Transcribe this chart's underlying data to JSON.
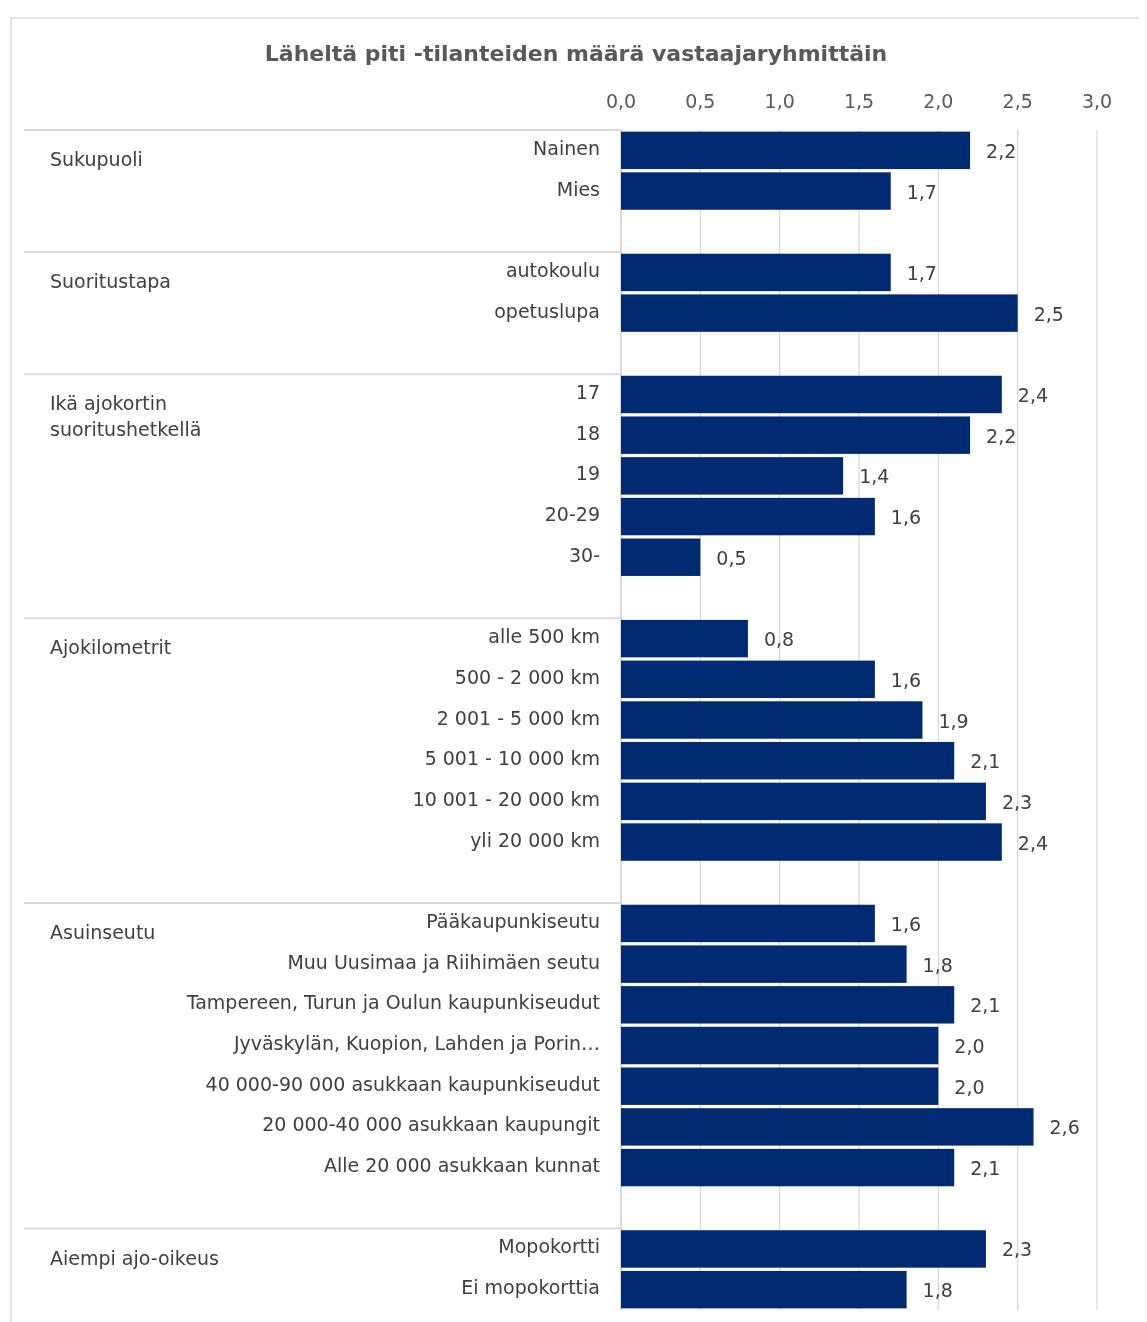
{
  "chart_data": {
    "type": "bar",
    "orientation": "horizontal",
    "title": "Läheltä piti -tilanteiden määrä vastaajaryhmittäin",
    "categories": [
      "Nainen",
      "Mies",
      null,
      "autokoulu",
      "opetuslupa",
      null,
      "17",
      "18",
      "19",
      "20-29",
      "30-",
      null,
      "alle 500 km",
      "500 - 2 000 km",
      "2 001 - 5 000 km",
      "5 001 - 10 000 km",
      "10 001 - 20 000 km",
      "yli 20 000 km",
      null,
      "Pääkaupunkiseutu",
      "Muu Uusimaa ja Riihimäen seutu",
      "Tampereen, Turun ja Oulun kaupunkiseudut",
      "Jyväskylän, Kuopion, Lahden ja Porin…",
      "40 000-90 000 asukkaan kaupunkiseudut",
      "20 000-40 000 asukkaan kaupungit",
      "Alle 20 000 asukkaan kunnat",
      null,
      "Mopokortti",
      "Ei mopokorttia"
    ],
    "values": [
      2.2,
      1.7,
      null,
      1.7,
      2.5,
      null,
      2.4,
      2.2,
      1.4,
      1.6,
      0.5,
      null,
      0.8,
      1.6,
      1.9,
      2.1,
      2.3,
      2.4,
      null,
      1.6,
      1.8,
      2.1,
      2.0,
      2.0,
      2.6,
      2.1,
      null,
      2.3,
      1.8
    ],
    "value_labels": [
      "2,2",
      "1,7",
      null,
      "1,7",
      "2,5",
      null,
      "2,4",
      "2,2",
      "1,4",
      "1,6",
      "0,5",
      null,
      "0,8",
      "1,6",
      "1,9",
      "2,1",
      "2,3",
      "2,4",
      null,
      "1,6",
      "1,8",
      "2,1",
      "2,0",
      "2,0",
      "2,6",
      "2,1",
      null,
      "2,3",
      "1,8"
    ],
    "color": "#002b73",
    "xlim": [
      0,
      3
    ],
    "xticks": [
      {
        "value": 0,
        "label": "0,0"
      },
      {
        "value": 0.5,
        "label": "0,5"
      },
      {
        "value": 1,
        "label": "1,0"
      },
      {
        "value": 1.5,
        "label": "1,5"
      },
      {
        "value": 2,
        "label": "2,0"
      },
      {
        "value": 2.5,
        "label": "2,5"
      },
      {
        "value": 3,
        "label": "3,0"
      }
    ],
    "grid": "x",
    "annotations": [
      "Sukupuoli",
      "Suoritustapa",
      "Ikä ajokortin suoritushetkellä",
      "Ajokilometrit",
      "Asuinseutu",
      "Aiempi ajo-oikeus"
    ]
  }
}
